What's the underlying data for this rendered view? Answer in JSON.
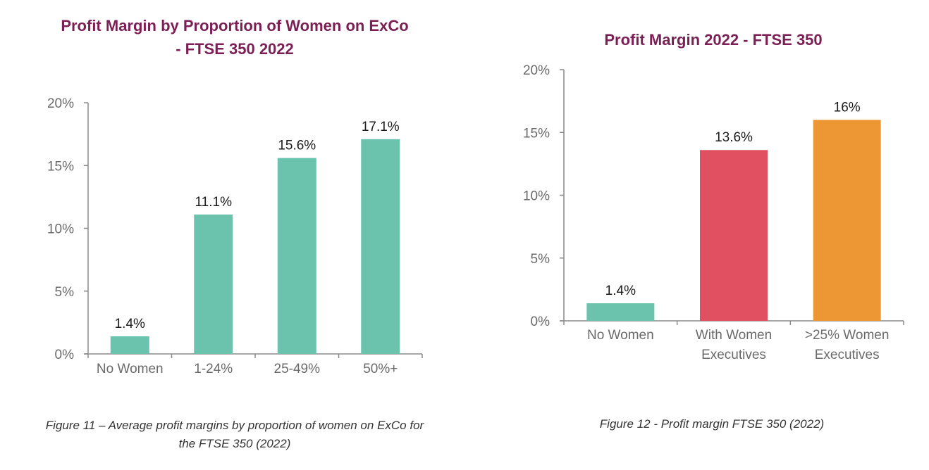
{
  "chart_data": [
    {
      "type": "bar",
      "title_lines": [
        "Profit Margin by Proportion of Women on ExCo",
        "- FTSE 350 2022"
      ],
      "categories": [
        "No Women",
        "1-24%",
        "25-49%",
        "50%+"
      ],
      "values": [
        1.4,
        11.1,
        15.6,
        17.1
      ],
      "data_labels": [
        "1.4%",
        "11.1%",
        "15.6%",
        "17.1%"
      ],
      "colors": [
        "#6cc3ad",
        "#6cc3ad",
        "#6cc3ad",
        "#6cc3ad"
      ],
      "yticks": [
        0,
        5,
        10,
        15,
        20
      ],
      "ytick_labels": [
        "0%",
        "5%",
        "10%",
        "15%",
        "20%"
      ],
      "ylim": [
        0,
        20
      ],
      "xlabel": "",
      "ylabel": "",
      "grid": false,
      "caption_lines": [
        "Figure 11 – Average profit margins by proportion of women on ExCo for",
        "the FTSE 350 (2022)"
      ]
    },
    {
      "type": "bar",
      "title_lines": [
        "Profit Margin 2022 - FTSE 350"
      ],
      "categories": [
        [
          "No Women"
        ],
        [
          "With Women",
          "Executives"
        ],
        [
          ">25% Women",
          "Executives"
        ]
      ],
      "values": [
        1.4,
        13.6,
        16
      ],
      "data_labels": [
        "1.4%",
        "13.6%",
        "16%"
      ],
      "colors": [
        "#6cc3ad",
        "#e05060",
        "#ec9733"
      ],
      "yticks": [
        0,
        5,
        10,
        15,
        20
      ],
      "ytick_labels": [
        "0%",
        "5%",
        "10%",
        "15%",
        "20%"
      ],
      "ylim": [
        0,
        20
      ],
      "xlabel": "",
      "ylabel": "",
      "grid": false,
      "caption_lines": [
        "Figure 12 - Profit margin FTSE 350 (2022)"
      ]
    }
  ]
}
